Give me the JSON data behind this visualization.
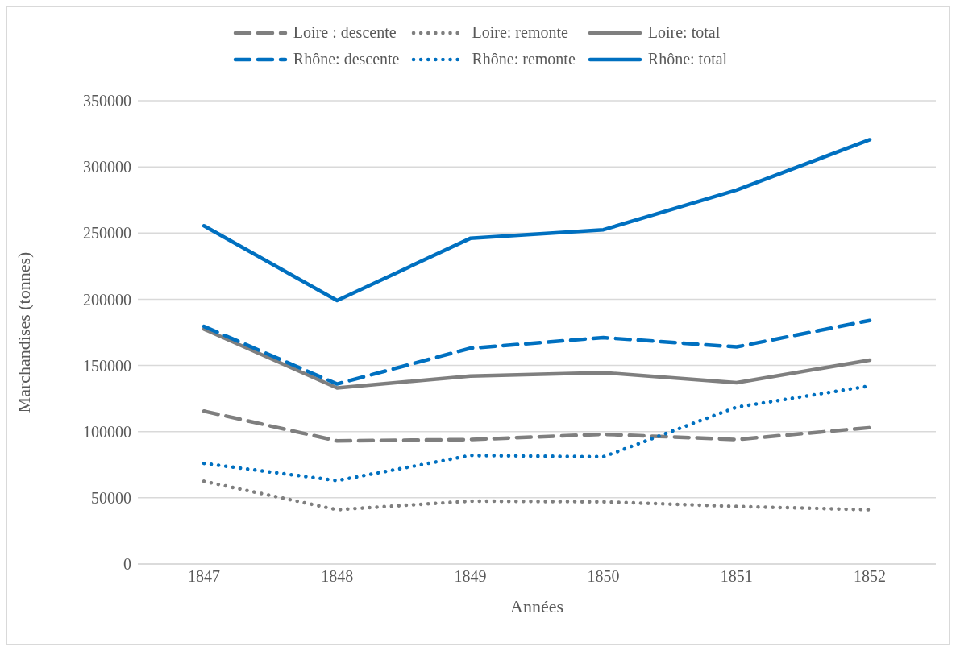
{
  "chart_data": {
    "type": "line",
    "xlabel": "Années",
    "ylabel": "Marchandises (tonnes)",
    "categories": [
      "1847",
      "1848",
      "1849",
      "1850",
      "1851",
      "1852"
    ],
    "series": [
      {
        "name": "Loire : descente",
        "color": "#7f7f7f",
        "line_style": "dashed",
        "values": [
          115500,
          93000,
          94000,
          98000,
          94000,
          103000
        ]
      },
      {
        "name": "Loire: remonte",
        "color": "#7f7f7f",
        "line_style": "dotted",
        "values": [
          62500,
          41000,
          47500,
          47000,
          43500,
          41000
        ]
      },
      {
        "name": "Loire: total",
        "color": "#7f7f7f",
        "line_style": "solid",
        "values": [
          177500,
          133000,
          142000,
          144500,
          137000,
          154000
        ]
      },
      {
        "name": "Rhône: descente",
        "color": "#0070c0",
        "line_style": "dashed",
        "values": [
          179500,
          136000,
          163000,
          171000,
          164000,
          184000
        ]
      },
      {
        "name": "Rhône: remonte",
        "color": "#0070c0",
        "line_style": "dotted",
        "values": [
          76000,
          63000,
          82000,
          81000,
          118500,
          134500
        ]
      },
      {
        "name": "Rhône: total",
        "color": "#0070c0",
        "line_style": "solid",
        "values": [
          255500,
          199000,
          246000,
          252500,
          282500,
          320500
        ]
      }
    ],
    "ylim": [
      0,
      350000
    ],
    "yticks": [
      0,
      50000,
      100000,
      150000,
      200000,
      250000,
      300000,
      350000
    ],
    "grid": "y",
    "legend": "top",
    "marker": "none"
  }
}
